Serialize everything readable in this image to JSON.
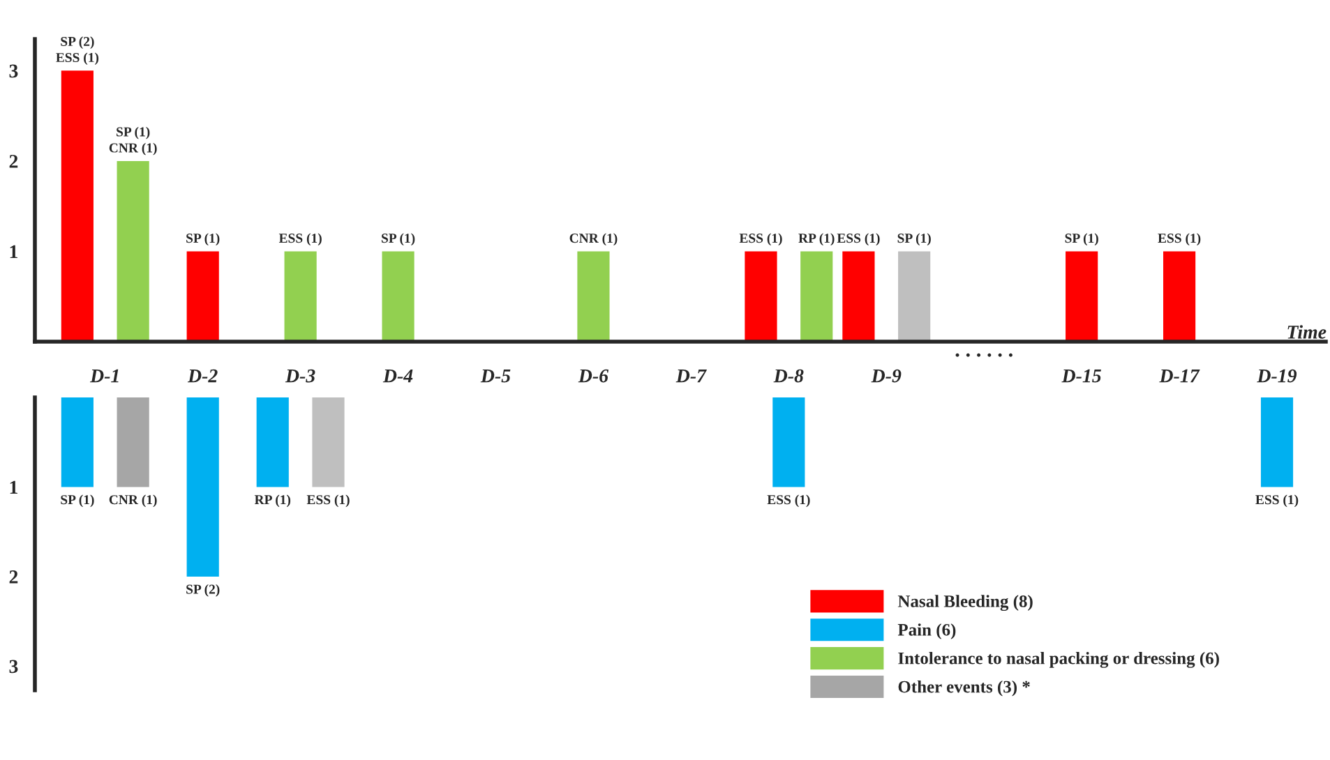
{
  "chart_data": [
    {
      "type": "bar",
      "xlabel": "Time",
      "categories": [
        "D-1",
        "D-2",
        "D-3",
        "D-4",
        "D-5",
        "D-6",
        "D-7",
        "D-8",
        "D-9",
        null,
        "D-15",
        "D-17",
        "D-19"
      ],
      "series": [
        {
          "color": "#ff0000",
          "values": [
            3,
            1,
            null,
            null,
            null,
            null,
            null,
            1,
            1,
            null,
            1,
            1,
            null
          ],
          "value_labels": [
            "SP (2)\nESS (1)",
            "SP (1)",
            null,
            null,
            null,
            null,
            null,
            "ESS (1)",
            "ESS (1)",
            null,
            "SP (1)",
            "ESS (1)",
            null
          ]
        },
        {
          "color": "#92d050",
          "values": [
            2,
            null,
            1,
            1,
            null,
            1,
            null,
            1,
            null,
            null,
            null,
            null,
            null
          ],
          "value_labels": [
            "SP (1)\nCNR (1)",
            null,
            "ESS (1)",
            "SP (1)",
            null,
            "CNR (1)",
            null,
            "RP (1)",
            null,
            null,
            null,
            null,
            null
          ]
        },
        {
          "color": "#bfbfbf",
          "values": [
            null,
            null,
            null,
            null,
            null,
            null,
            null,
            null,
            1,
            null,
            null,
            null,
            null
          ],
          "value_labels": [
            null,
            null,
            null,
            null,
            null,
            null,
            null,
            null,
            "SP (1)",
            null,
            null,
            null,
            null
          ]
        }
      ],
      "ylim": [
        0,
        3.35
      ],
      "yticks": [
        1,
        2,
        3
      ],
      "annotations": [
        ". . . . . ."
      ],
      "legend": false
    },
    {
      "type": "bar",
      "categories": [
        null,
        null,
        null,
        null,
        null,
        null,
        null,
        null,
        null,
        null,
        null,
        null,
        null
      ],
      "series": [
        {
          "name": "Nasal Bleeding (8)",
          "color": "#ff0000",
          "values": [
            null,
            null,
            null,
            null,
            null,
            null,
            null,
            null,
            null,
            null,
            null,
            null,
            null
          ]
        },
        {
          "name": "Pain (6)",
          "color": "#00b0f0",
          "values": [
            1,
            2,
            1,
            null,
            null,
            null,
            null,
            1,
            null,
            null,
            null,
            null,
            1
          ],
          "value_labels": [
            "SP (1)",
            "SP (2)",
            "RP (1)",
            null,
            null,
            null,
            null,
            "ESS (1)",
            null,
            null,
            null,
            null,
            "ESS (1)"
          ]
        },
        {
          "name": "Intolerance to nasal packing or dressing (6)",
          "color": "#92d050",
          "values": [
            null,
            null,
            null,
            null,
            null,
            null,
            null,
            null,
            null,
            null,
            null,
            null,
            null
          ]
        },
        {
          "name": "Other events (3) *",
          "color": "#a6a6a6",
          "values": [
            1,
            null,
            1,
            null,
            null,
            null,
            null,
            null,
            null,
            null,
            null,
            null,
            null
          ],
          "colors": [
            "#a6a6a6",
            null,
            "#bfbfbf",
            null,
            null,
            null,
            null,
            null,
            null,
            null,
            null,
            null,
            null
          ],
          "value_labels": [
            "CNR (1)",
            null,
            "ESS (1)",
            null,
            null,
            null,
            null,
            null,
            null,
            null,
            null,
            null,
            null
          ]
        }
      ],
      "ylim": [
        3.27,
        0
      ],
      "yticks": [
        1,
        2,
        3
      ],
      "tick_labels": "y",
      "legend": "bottom right"
    }
  ]
}
